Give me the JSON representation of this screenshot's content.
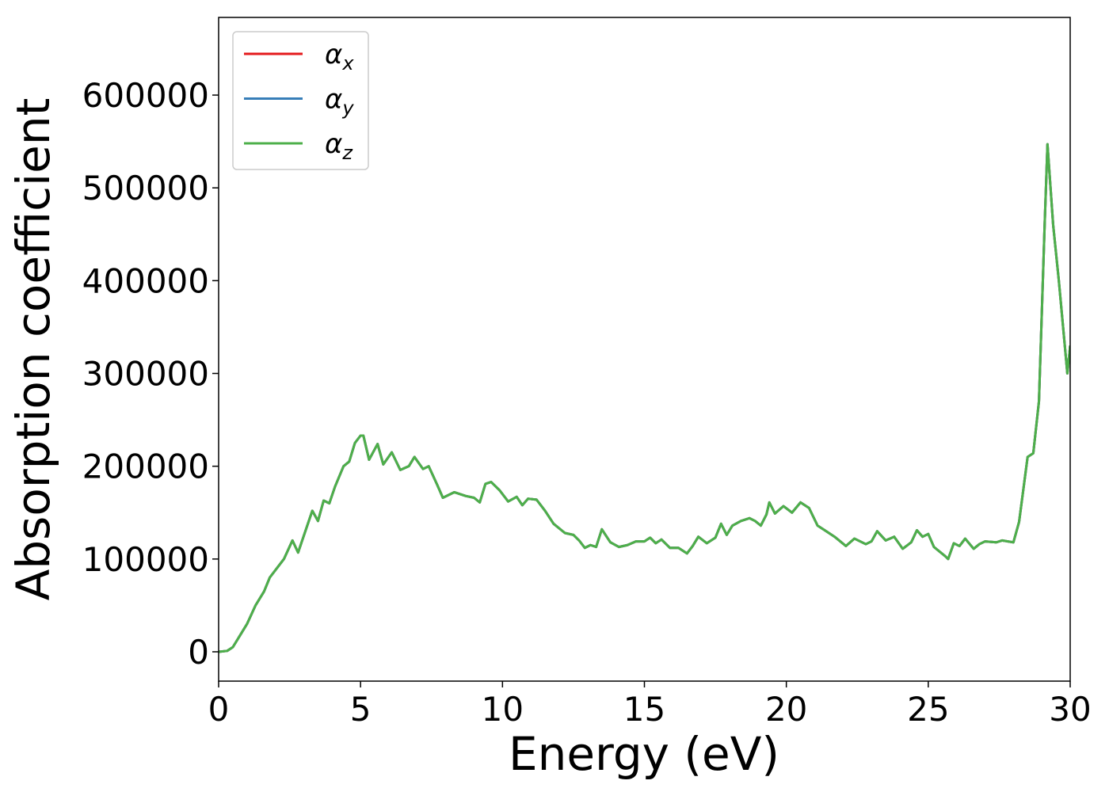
{
  "chart_data": {
    "type": "line",
    "xlabel": "Energy (eV)",
    "ylabel": "Absorption coefficient",
    "xlim": [
      0,
      30
    ],
    "xticks": [
      0,
      5,
      10,
      15,
      20,
      25,
      30
    ],
    "ylim": [
      -31600,
      683700
    ],
    "yticks": [
      0,
      100000,
      200000,
      300000,
      400000,
      500000,
      600000
    ],
    "legend": "upper left",
    "grid": false,
    "x": [
      0,
      0.3,
      0.5,
      0.8,
      1.0,
      1.3,
      1.6,
      1.8,
      2.1,
      2.3,
      2.6,
      2.8,
      3.0,
      3.3,
      3.5,
      3.7,
      3.9,
      4.1,
      4.4,
      4.6,
      4.8,
      5.0,
      5.1,
      5.3,
      5.6,
      5.8,
      6.1,
      6.4,
      6.7,
      6.9,
      7.2,
      7.4,
      7.7,
      7.9,
      8.3,
      8.7,
      9.0,
      9.2,
      9.4,
      9.6,
      9.9,
      10.2,
      10.5,
      10.7,
      10.9,
      11.2,
      11.5,
      11.8,
      12.2,
      12.5,
      12.7,
      12.9,
      13.1,
      13.3,
      13.5,
      13.8,
      14.1,
      14.4,
      14.7,
      15.0,
      15.2,
      15.4,
      15.6,
      15.9,
      16.2,
      16.5,
      16.7,
      16.9,
      17.2,
      17.5,
      17.7,
      17.9,
      18.1,
      18.4,
      18.7,
      18.9,
      19.1,
      19.3,
      19.4,
      19.6,
      19.9,
      20.2,
      20.5,
      20.8,
      21.1,
      21.4,
      21.7,
      22.1,
      22.4,
      22.8,
      23.0,
      23.2,
      23.5,
      23.8,
      24.1,
      24.4,
      24.6,
      24.8,
      25.0,
      25.2,
      25.6,
      25.7,
      25.9,
      26.1,
      26.3,
      26.6,
      26.8,
      27.0,
      27.4,
      27.6,
      28.0,
      28.2,
      28.5,
      28.7,
      28.9,
      29.1,
      29.2,
      29.4,
      29.6,
      29.9,
      30.0
    ],
    "series": [
      {
        "name": "αx",
        "color": "#e41a1c",
        "values": [
          0,
          1000,
          5000,
          20000,
          30000,
          50000,
          65000,
          80000,
          92000,
          100000,
          120000,
          107000,
          125000,
          152000,
          141000,
          163000,
          160000,
          178000,
          200000,
          205000,
          225000,
          233000,
          233000,
          207000,
          224000,
          202000,
          215000,
          196000,
          200000,
          210000,
          197000,
          200000,
          180000,
          166000,
          172000,
          168000,
          166000,
          161000,
          181000,
          183000,
          174000,
          162000,
          167000,
          158000,
          165000,
          164000,
          152000,
          138000,
          128000,
          126000,
          120000,
          112000,
          115000,
          113000,
          132000,
          118000,
          113000,
          115000,
          119000,
          119000,
          123000,
          117000,
          121000,
          112000,
          112000,
          106000,
          114000,
          124000,
          117000,
          123000,
          138000,
          126000,
          136000,
          141000,
          144000,
          141000,
          136000,
          148000,
          161000,
          149000,
          157000,
          150000,
          161000,
          155000,
          136000,
          130000,
          124000,
          114000,
          122000,
          116000,
          119000,
          130000,
          120000,
          124000,
          111000,
          118000,
          131000,
          124000,
          127000,
          113000,
          103000,
          100000,
          117000,
          114000,
          122000,
          111000,
          116000,
          119000,
          118000,
          120000,
          118000,
          140000,
          210000,
          214000,
          270000,
          460000,
          547000,
          460000,
          400000,
          300000,
          330000
        ]
      },
      {
        "name": "αy",
        "color": "#377eb8",
        "values": [
          0,
          1000,
          5000,
          20000,
          30000,
          50000,
          65000,
          80000,
          92000,
          100000,
          120000,
          107000,
          125000,
          152000,
          141000,
          163000,
          160000,
          178000,
          200000,
          205000,
          225000,
          233000,
          233000,
          207000,
          224000,
          202000,
          215000,
          196000,
          200000,
          210000,
          197000,
          200000,
          180000,
          166000,
          172000,
          168000,
          166000,
          161000,
          181000,
          183000,
          174000,
          162000,
          167000,
          158000,
          165000,
          164000,
          152000,
          138000,
          128000,
          126000,
          120000,
          112000,
          115000,
          113000,
          132000,
          118000,
          113000,
          115000,
          119000,
          119000,
          123000,
          117000,
          121000,
          112000,
          112000,
          106000,
          114000,
          124000,
          117000,
          123000,
          138000,
          126000,
          136000,
          141000,
          144000,
          141000,
          136000,
          148000,
          161000,
          149000,
          157000,
          150000,
          161000,
          155000,
          136000,
          130000,
          124000,
          114000,
          122000,
          116000,
          119000,
          130000,
          120000,
          124000,
          111000,
          118000,
          131000,
          124000,
          127000,
          113000,
          103000,
          100000,
          117000,
          114000,
          122000,
          111000,
          116000,
          119000,
          118000,
          120000,
          118000,
          140000,
          210000,
          214000,
          270000,
          460000,
          547000,
          460000,
          400000,
          300000,
          330000
        ]
      },
      {
        "name": "αz",
        "color": "#4daf4a",
        "values": [
          0,
          1000,
          5000,
          20000,
          30000,
          50000,
          65000,
          80000,
          92000,
          100000,
          120000,
          107000,
          125000,
          152000,
          141000,
          163000,
          160000,
          178000,
          200000,
          205000,
          225000,
          233000,
          233000,
          207000,
          224000,
          202000,
          215000,
          196000,
          200000,
          210000,
          197000,
          200000,
          180000,
          166000,
          172000,
          168000,
          166000,
          161000,
          181000,
          183000,
          174000,
          162000,
          167000,
          158000,
          165000,
          164000,
          152000,
          138000,
          128000,
          126000,
          120000,
          112000,
          115000,
          113000,
          132000,
          118000,
          113000,
          115000,
          119000,
          119000,
          123000,
          117000,
          121000,
          112000,
          112000,
          106000,
          114000,
          124000,
          117000,
          123000,
          138000,
          126000,
          136000,
          141000,
          144000,
          141000,
          136000,
          148000,
          161000,
          149000,
          157000,
          150000,
          161000,
          155000,
          136000,
          130000,
          124000,
          114000,
          122000,
          116000,
          119000,
          130000,
          120000,
          124000,
          111000,
          118000,
          131000,
          124000,
          127000,
          113000,
          103000,
          100000,
          117000,
          114000,
          122000,
          111000,
          116000,
          119000,
          118000,
          120000,
          118000,
          140000,
          210000,
          214000,
          270000,
          460000,
          547000,
          460000,
          400000,
          300000,
          330000
        ]
      }
    ]
  }
}
